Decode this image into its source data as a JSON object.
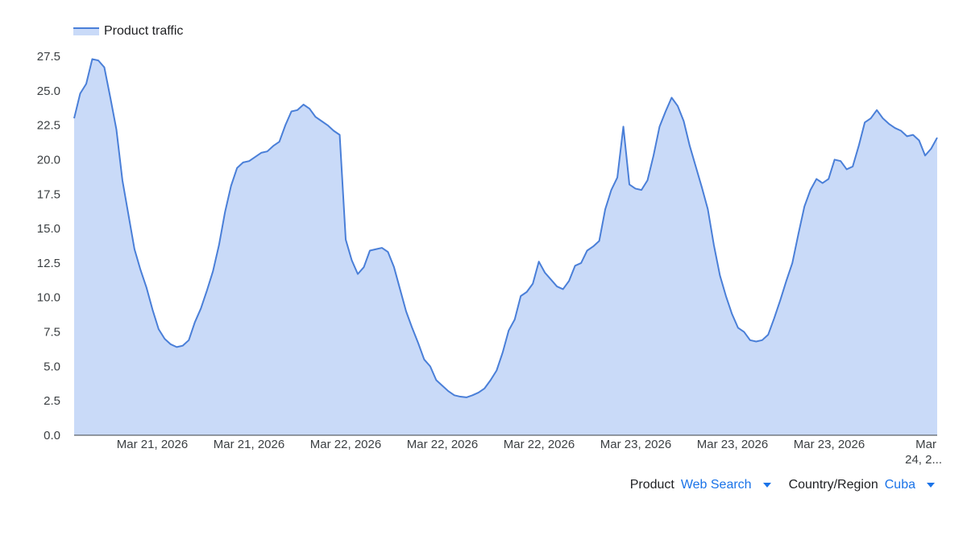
{
  "chart_data": {
    "type": "area",
    "legend": [
      {
        "label": "Product traffic",
        "color": "#4a7fd8"
      }
    ],
    "legend_position": "top-left",
    "grid": false,
    "ylim": [
      0,
      27.5
    ],
    "y_ticks": [
      "0.0",
      "2.5",
      "5.0",
      "7.5",
      "10.0",
      "12.5",
      "15.0",
      "17.5",
      "20.0",
      "22.5",
      "25.0",
      "27.5"
    ],
    "x_ticks": [
      "Mar 21, 2026",
      "Mar 21, 2026",
      "Mar 22, 2026",
      "Mar 22, 2026",
      "Mar 22, 2026",
      "Mar 23, 2026",
      "Mar 23, 2026",
      "Mar 23, 2026",
      "Mar 24, 2..."
    ],
    "line_color": "#4a7fd8",
    "fill_color": "#c9daf8",
    "series": [
      {
        "name": "Product traffic",
        "values": [
          23.0,
          24.8,
          25.5,
          27.3,
          27.2,
          26.7,
          24.5,
          22.2,
          18.5,
          16.0,
          13.5,
          12.0,
          10.7,
          9.1,
          7.7,
          7.0,
          6.6,
          6.4,
          6.5,
          6.9,
          8.2,
          9.2,
          10.5,
          11.9,
          13.8,
          16.2,
          18.1,
          19.4,
          19.8,
          19.9,
          20.2,
          20.5,
          20.6,
          21.0,
          21.3,
          22.5,
          23.5,
          23.6,
          24.0,
          23.7,
          23.1,
          22.8,
          22.5,
          22.1,
          21.8,
          14.2,
          12.7,
          11.7,
          12.2,
          13.4,
          13.5,
          13.6,
          13.3,
          12.2,
          10.6,
          9.0,
          7.8,
          6.7,
          5.5,
          5.0,
          4.0,
          3.6,
          3.2,
          2.9,
          2.8,
          2.75,
          2.9,
          3.1,
          3.4,
          4.0,
          4.7,
          6.0,
          7.6,
          8.4,
          10.1,
          10.4,
          11.0,
          12.6,
          11.8,
          11.3,
          10.8,
          10.6,
          11.2,
          12.3,
          12.5,
          13.4,
          13.7,
          14.1,
          16.4,
          17.8,
          18.7,
          22.4,
          18.2,
          17.9,
          17.8,
          18.5,
          20.3,
          22.4,
          23.5,
          24.5,
          23.9,
          22.8,
          21.0,
          19.5,
          18.0,
          16.4,
          13.8,
          11.6,
          10.1,
          8.8,
          7.8,
          7.5,
          6.9,
          6.8,
          6.9,
          7.3,
          8.5,
          9.8,
          11.2,
          12.5,
          14.6,
          16.6,
          17.8,
          18.6,
          18.3,
          18.6,
          20.0,
          19.9,
          19.3,
          19.5,
          21.0,
          22.7,
          23.0,
          23.6,
          23.0,
          22.6,
          22.3,
          22.1,
          21.7,
          21.8,
          21.4,
          20.3,
          20.8,
          21.6
        ]
      }
    ]
  },
  "controls": {
    "product_label": "Product",
    "product_value": "Web Search",
    "region_label": "Country/Region",
    "region_value": "Cuba"
  }
}
